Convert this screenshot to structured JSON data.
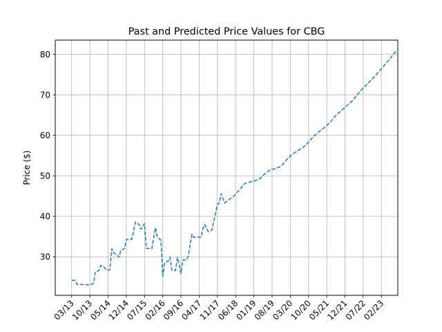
{
  "chart_data": {
    "type": "line",
    "title": "Past and Predicted Price Values for CBG",
    "xlabel": "",
    "ylabel": "Price ($)",
    "x_ticks": [
      "03/13",
      "10/13",
      "05/14",
      "12/14",
      "07/15",
      "02/16",
      "09/16",
      "04/17",
      "11/17",
      "06/18",
      "01/19",
      "08/19",
      "03/20",
      "10/20",
      "05/21",
      "12/21",
      "07/22",
      "02/23"
    ],
    "y_ticks": [
      30,
      40,
      50,
      60,
      70,
      80
    ],
    "ylim": [
      20.5,
      83.5
    ],
    "xlim": [
      -0.9,
      17.9
    ],
    "grid": true,
    "series": [
      {
        "name": "",
        "color": "#1f77b4",
        "linestyle": "dashed",
        "points": [
          [
            0.0,
            24.2
          ],
          [
            0.2,
            24.2
          ],
          [
            0.3,
            23.2
          ],
          [
            0.5,
            23.2
          ],
          [
            0.8,
            23.1
          ],
          [
            1.0,
            23.1
          ],
          [
            1.2,
            23.4
          ],
          [
            1.3,
            26.3
          ],
          [
            1.5,
            26.6
          ],
          [
            1.6,
            27.9
          ],
          [
            1.8,
            27.4
          ],
          [
            1.9,
            26.7
          ],
          [
            2.1,
            26.8
          ],
          [
            2.2,
            32.0
          ],
          [
            2.3,
            31.0
          ],
          [
            2.5,
            30.5
          ],
          [
            2.6,
            29.9
          ],
          [
            2.7,
            31.7
          ],
          [
            2.9,
            32.0
          ],
          [
            3.0,
            34.3
          ],
          [
            3.3,
            34.3
          ],
          [
            3.5,
            38.6
          ],
          [
            3.7,
            38.0
          ],
          [
            3.8,
            36.8
          ],
          [
            4.0,
            38.2
          ],
          [
            4.1,
            32.1
          ],
          [
            4.4,
            32.0
          ],
          [
            4.6,
            37.2
          ],
          [
            4.7,
            35.0
          ],
          [
            4.9,
            34.1
          ],
          [
            5.0,
            25.2
          ],
          [
            5.1,
            28.5
          ],
          [
            5.3,
            29.0
          ],
          [
            5.4,
            29.9
          ],
          [
            5.5,
            26.7
          ],
          [
            5.7,
            26.6
          ],
          [
            5.8,
            29.8
          ],
          [
            5.9,
            28.2
          ],
          [
            6.0,
            25.9
          ],
          [
            6.1,
            29.2
          ],
          [
            6.3,
            29.2
          ],
          [
            6.4,
            30.2
          ],
          [
            6.6,
            35.6
          ],
          [
            6.7,
            34.8
          ],
          [
            7.1,
            34.9
          ],
          [
            7.2,
            36.9
          ],
          [
            7.3,
            38.0
          ],
          [
            7.5,
            36.2
          ],
          [
            7.7,
            36.6
          ],
          [
            8.0,
            43.0
          ],
          [
            8.1,
            43.2
          ],
          [
            8.2,
            45.6
          ],
          [
            8.4,
            43.3
          ],
          [
            8.6,
            44.0
          ],
          [
            8.9,
            45.0
          ],
          [
            9.2,
            46.5
          ],
          [
            9.5,
            48.1
          ],
          [
            9.8,
            48.5
          ],
          [
            10.0,
            48.7
          ],
          [
            10.3,
            49.2
          ],
          [
            10.6,
            50.5
          ],
          [
            10.9,
            51.5
          ],
          [
            11.2,
            51.8
          ],
          [
            11.5,
            52.4
          ],
          [
            11.8,
            54.0
          ],
          [
            12.1,
            55.3
          ],
          [
            12.4,
            56.2
          ],
          [
            12.7,
            57.0
          ],
          [
            13.0,
            58.3
          ],
          [
            13.3,
            59.8
          ],
          [
            13.6,
            61.0
          ],
          [
            13.9,
            62.0
          ],
          [
            14.2,
            63.3
          ],
          [
            14.5,
            64.9
          ],
          [
            14.8,
            66.1
          ],
          [
            15.1,
            67.3
          ],
          [
            15.4,
            68.5
          ],
          [
            15.7,
            70.2
          ],
          [
            16.0,
            71.7
          ],
          [
            16.3,
            73.0
          ],
          [
            16.6,
            74.4
          ],
          [
            16.9,
            75.9
          ],
          [
            17.2,
            77.5
          ],
          [
            17.5,
            79.1
          ],
          [
            17.8,
            80.8
          ]
        ]
      }
    ]
  }
}
